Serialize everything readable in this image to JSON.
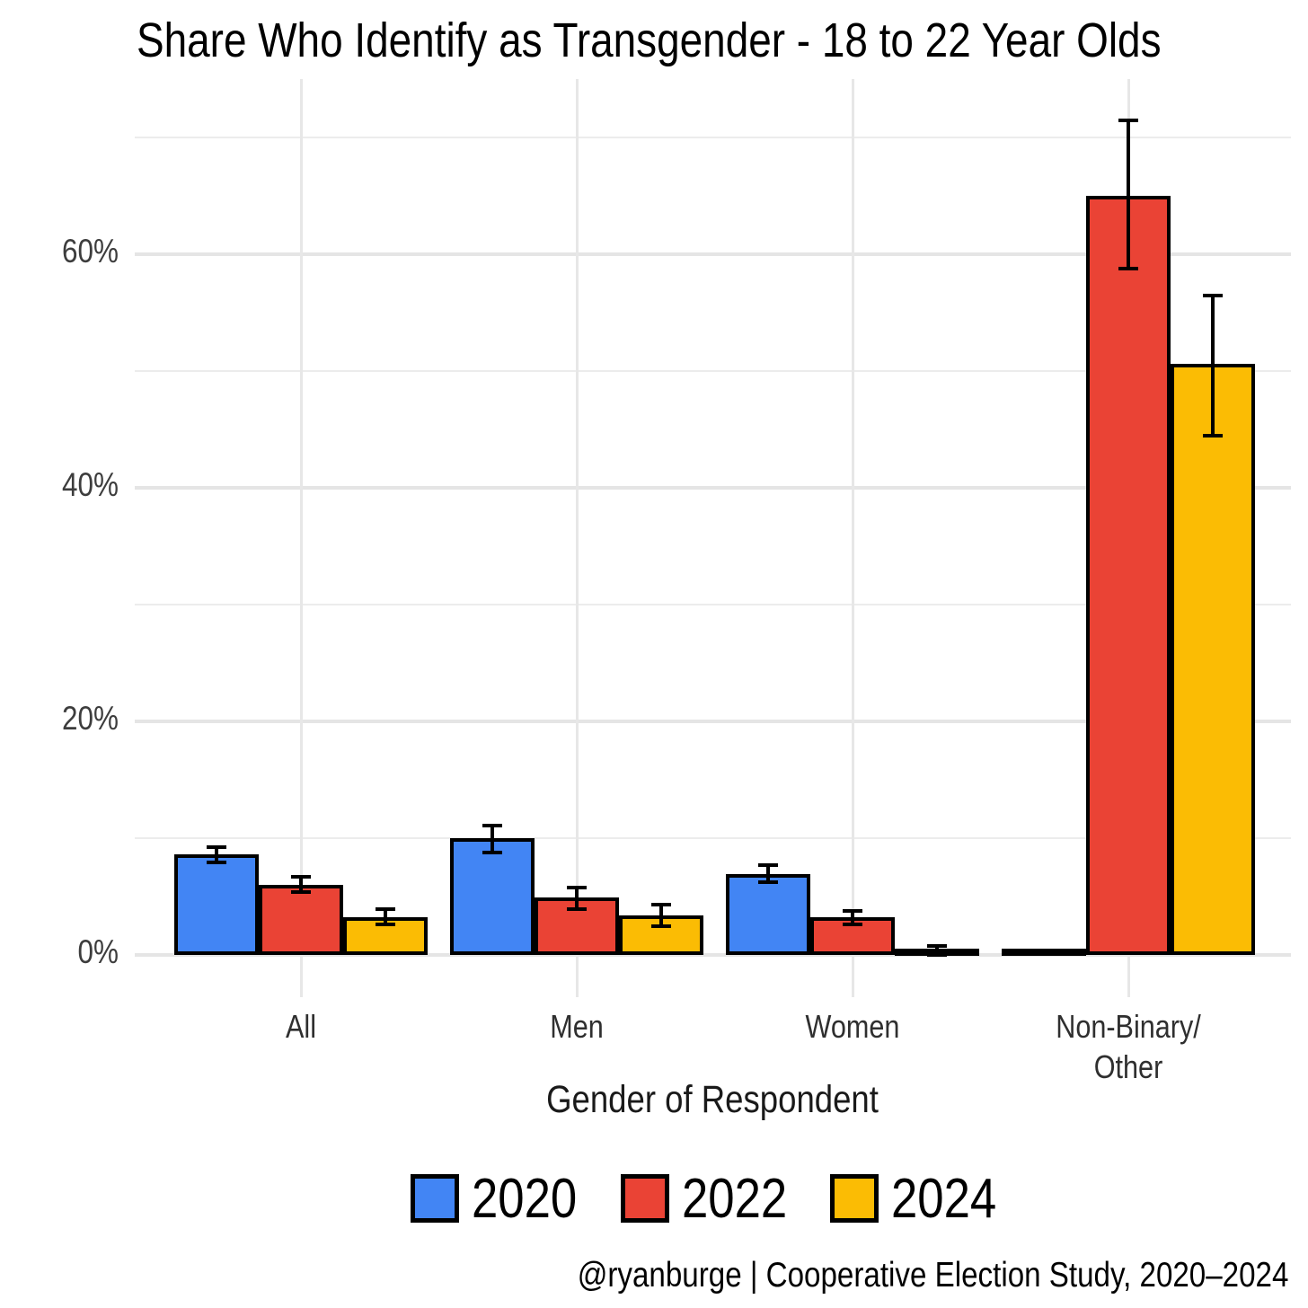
{
  "title": "Share Who Identify as Transgender - 18 to 22 Year Olds",
  "caption": "@ryanburge | Cooperative Election Study, 2020–2024",
  "colors": {
    "series_2020": "#4285F4",
    "series_2022": "#EA4335",
    "series_2024": "#FBBC04",
    "gridline": "#e7e7e7",
    "axis_text": "#3d3d3d",
    "bar_border": "#000000"
  },
  "y_axis": {
    "tick_labels": [
      "0%",
      "20%",
      "40%",
      "60%"
    ],
    "tick_values": [
      0,
      20,
      40,
      60
    ]
  },
  "legend": {
    "items": [
      {
        "label": "2020",
        "color": "#4285F4"
      },
      {
        "label": "2022",
        "color": "#EA4335"
      },
      {
        "label": "2024",
        "color": "#FBBC04"
      }
    ]
  },
  "chart_data": {
    "type": "bar",
    "title": "Share Who Identify as Transgender - 18 to 22 Year Olds",
    "xlabel": "Gender of Respondent",
    "ylabel": "",
    "ylim": [
      0,
      75
    ],
    "grid": true,
    "gridline_values": [
      0,
      10,
      20,
      30,
      40,
      50,
      60,
      70
    ],
    "legend_position": "bottom",
    "error_bars": true,
    "categories": [
      "All",
      "Men",
      "Women",
      "Non-Binary/Other"
    ],
    "category_label_lines": [
      [
        "All"
      ],
      [
        "Men"
      ],
      [
        "Women"
      ],
      [
        "Non-Binary/",
        "Other"
      ]
    ],
    "series": [
      {
        "name": "2020",
        "color": "#4285F4",
        "values": [
          8.6,
          10.0,
          6.9,
          0.1
        ],
        "error_low": [
          7.9,
          8.8,
          6.2,
          null
        ],
        "error_high": [
          9.2,
          11.1,
          7.7,
          null
        ]
      },
      {
        "name": "2022",
        "color": "#EA4335",
        "values": [
          6.0,
          4.9,
          3.2,
          65.0
        ],
        "error_low": [
          5.4,
          3.9,
          2.6,
          58.8
        ],
        "error_high": [
          6.7,
          5.8,
          3.8,
          71.5
        ]
      },
      {
        "name": "2024",
        "color": "#FBBC04",
        "values": [
          3.2,
          3.4,
          0.3,
          50.6
        ],
        "error_low": [
          2.6,
          2.5,
          0.0,
          44.5
        ],
        "error_high": [
          3.9,
          4.3,
          0.8,
          56.5
        ]
      }
    ]
  }
}
